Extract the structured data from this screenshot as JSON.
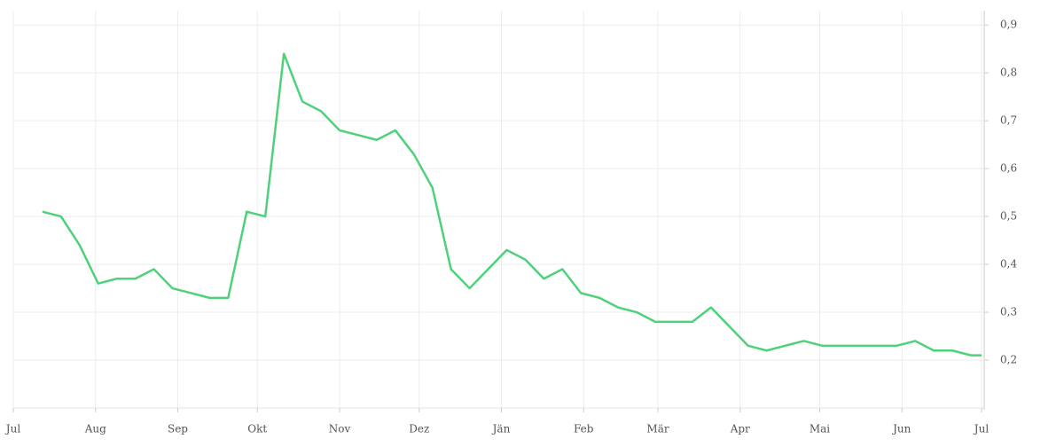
{
  "chart_data": {
    "type": "line",
    "x": [
      11,
      18,
      25,
      32,
      39,
      46,
      53,
      60,
      67,
      74,
      81,
      88,
      95,
      102,
      109,
      116,
      123,
      130,
      137,
      144,
      151,
      158,
      165,
      172,
      179,
      186,
      193,
      200,
      207,
      214,
      221,
      228,
      235,
      242,
      249,
      256,
      263,
      270,
      277,
      284,
      291,
      298,
      305,
      312,
      319,
      326,
      333,
      340,
      347,
      354,
      361,
      365
    ],
    "series": [
      {
        "color": "#4fd17c",
        "values": [
          0.51,
          0.5,
          0.44,
          0.36,
          0.37,
          0.37,
          0.39,
          0.35,
          0.34,
          0.33,
          0.33,
          0.51,
          0.5,
          0.84,
          0.74,
          0.72,
          0.68,
          0.67,
          0.66,
          0.68,
          0.63,
          0.56,
          0.39,
          0.35,
          0.39,
          0.43,
          0.41,
          0.37,
          0.39,
          0.34,
          0.33,
          0.31,
          0.3,
          0.28,
          0.28,
          0.28,
          0.31,
          0.27,
          0.23,
          0.22,
          0.23,
          0.24,
          0.23,
          0.23,
          0.23,
          0.23,
          0.23,
          0.24,
          0.22,
          0.22,
          0.21,
          0.21
        ]
      }
    ],
    "xlim": [
      0,
      365
    ],
    "xticks": [
      {
        "value": 0,
        "label": "Jul"
      },
      {
        "value": 31,
        "label": "Aug"
      },
      {
        "value": 62,
        "label": "Sep"
      },
      {
        "value": 92,
        "label": "Okt"
      },
      {
        "value": 123,
        "label": "Nov"
      },
      {
        "value": 153,
        "label": "Dez"
      },
      {
        "value": 184,
        "label": "Jän"
      },
      {
        "value": 215,
        "label": "Feb"
      },
      {
        "value": 243,
        "label": "Mär"
      },
      {
        "value": 274,
        "label": "Apr"
      },
      {
        "value": 304,
        "label": "Mai"
      },
      {
        "value": 335,
        "label": "Jun"
      },
      {
        "value": 365,
        "label": "Jul"
      }
    ],
    "ylim": [
      0.1,
      0.93
    ],
    "yticks": [
      {
        "value": 0.2,
        "label": "0,2"
      },
      {
        "value": 0.3,
        "label": "0,3"
      },
      {
        "value": 0.4,
        "label": "0,4"
      },
      {
        "value": 0.5,
        "label": "0,5"
      },
      {
        "value": 0.6,
        "label": "0,6"
      },
      {
        "value": 0.7,
        "label": "0,7"
      },
      {
        "value": 0.8,
        "label": "0,8"
      },
      {
        "value": 0.9,
        "label": "0,9"
      }
    ],
    "grid": true
  }
}
